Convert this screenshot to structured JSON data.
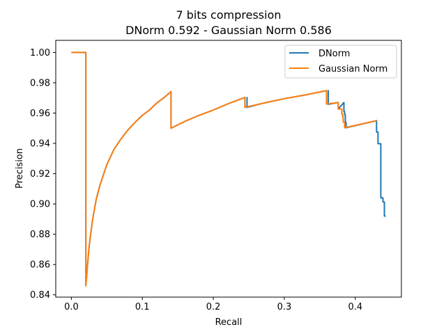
{
  "chart_data": {
    "type": "line",
    "title": "7 bits compression",
    "subtitle": "DNorm 0.592 - Gaussian Norm 0.586",
    "xlabel": "Recall",
    "ylabel": "Precision",
    "xlim": [
      -0.022,
      0.465
    ],
    "ylim": [
      0.8385,
      1.008
    ],
    "xticks": [
      0.0,
      0.1,
      0.2,
      0.3,
      0.4
    ],
    "xtick_labels": [
      "0.0",
      "0.1",
      "0.2",
      "0.3",
      "0.4"
    ],
    "yticks": [
      0.84,
      0.86,
      0.88,
      0.9,
      0.92,
      0.94,
      0.96,
      0.98,
      1.0
    ],
    "ytick_labels": [
      "0.84",
      "0.86",
      "0.88",
      "0.90",
      "0.92",
      "0.94",
      "0.96",
      "0.98",
      "1.00"
    ],
    "grid": false,
    "legend_position": "top-right",
    "series": [
      {
        "name": "DNorm",
        "color": "#1f77b4",
        "points": [
          [
            0.0,
            1.0
          ],
          [
            0.0204,
            1.0
          ],
          [
            0.0204,
            0.846
          ],
          [
            0.025,
            0.872
          ],
          [
            0.03,
            0.89
          ],
          [
            0.035,
            0.903
          ],
          [
            0.04,
            0.912
          ],
          [
            0.05,
            0.926
          ],
          [
            0.06,
            0.936
          ],
          [
            0.07,
            0.943
          ],
          [
            0.08,
            0.949
          ],
          [
            0.09,
            0.954
          ],
          [
            0.1,
            0.9585
          ],
          [
            0.11,
            0.962
          ],
          [
            0.12,
            0.9665
          ],
          [
            0.13,
            0.97
          ],
          [
            0.1404,
            0.9742
          ],
          [
            0.1404,
            0.95
          ],
          [
            0.16,
            0.9545
          ],
          [
            0.18,
            0.9585
          ],
          [
            0.2,
            0.962
          ],
          [
            0.22,
            0.966
          ],
          [
            0.2445,
            0.9703
          ],
          [
            0.2445,
            0.9638
          ],
          [
            0.2475,
            0.9645
          ],
          [
            0.2475,
            0.9703
          ],
          [
            0.2475,
            0.9638
          ],
          [
            0.27,
            0.9665
          ],
          [
            0.3,
            0.9695
          ],
          [
            0.33,
            0.972
          ],
          [
            0.3595,
            0.9748
          ],
          [
            0.3595,
            0.966
          ],
          [
            0.362,
            0.9662
          ],
          [
            0.362,
            0.9748
          ],
          [
            0.362,
            0.9658
          ],
          [
            0.376,
            0.967
          ],
          [
            0.376,
            0.9627
          ],
          [
            0.384,
            0.967
          ],
          [
            0.384,
            0.961
          ],
          [
            0.385,
            0.961
          ],
          [
            0.385,
            0.959
          ],
          [
            0.386,
            0.959
          ],
          [
            0.386,
            0.954
          ],
          [
            0.387,
            0.954
          ],
          [
            0.387,
            0.9503
          ],
          [
            0.43,
            0.955
          ],
          [
            0.43,
            0.9475
          ],
          [
            0.432,
            0.9475
          ],
          [
            0.432,
            0.9398
          ],
          [
            0.436,
            0.9398
          ],
          [
            0.436,
            0.904
          ],
          [
            0.439,
            0.904
          ],
          [
            0.439,
            0.9014
          ],
          [
            0.441,
            0.9014
          ],
          [
            0.441,
            0.892
          ],
          [
            0.443,
            0.892
          ]
        ]
      },
      {
        "name": "Gaussian Norm",
        "color": "#ff7f0e",
        "points": [
          [
            0.0,
            1.0
          ],
          [
            0.0204,
            1.0
          ],
          [
            0.0204,
            0.846
          ],
          [
            0.025,
            0.872
          ],
          [
            0.03,
            0.89
          ],
          [
            0.035,
            0.903
          ],
          [
            0.04,
            0.912
          ],
          [
            0.05,
            0.926
          ],
          [
            0.06,
            0.936
          ],
          [
            0.07,
            0.943
          ],
          [
            0.08,
            0.949
          ],
          [
            0.09,
            0.954
          ],
          [
            0.1,
            0.9585
          ],
          [
            0.11,
            0.962
          ],
          [
            0.12,
            0.9665
          ],
          [
            0.13,
            0.97
          ],
          [
            0.1404,
            0.9742
          ],
          [
            0.1404,
            0.95
          ],
          [
            0.16,
            0.9545
          ],
          [
            0.18,
            0.9585
          ],
          [
            0.2,
            0.962
          ],
          [
            0.22,
            0.966
          ],
          [
            0.2445,
            0.9703
          ],
          [
            0.2445,
            0.9638
          ],
          [
            0.27,
            0.9665
          ],
          [
            0.3,
            0.9695
          ],
          [
            0.33,
            0.972
          ],
          [
            0.3595,
            0.9748
          ],
          [
            0.3595,
            0.966
          ],
          [
            0.376,
            0.967
          ],
          [
            0.376,
            0.9627
          ],
          [
            0.381,
            0.9627
          ],
          [
            0.381,
            0.9595
          ],
          [
            0.382,
            0.9595
          ],
          [
            0.382,
            0.958
          ],
          [
            0.383,
            0.958
          ],
          [
            0.383,
            0.954
          ],
          [
            0.385,
            0.954
          ],
          [
            0.385,
            0.9503
          ],
          [
            0.43,
            0.955
          ]
        ]
      }
    ]
  }
}
